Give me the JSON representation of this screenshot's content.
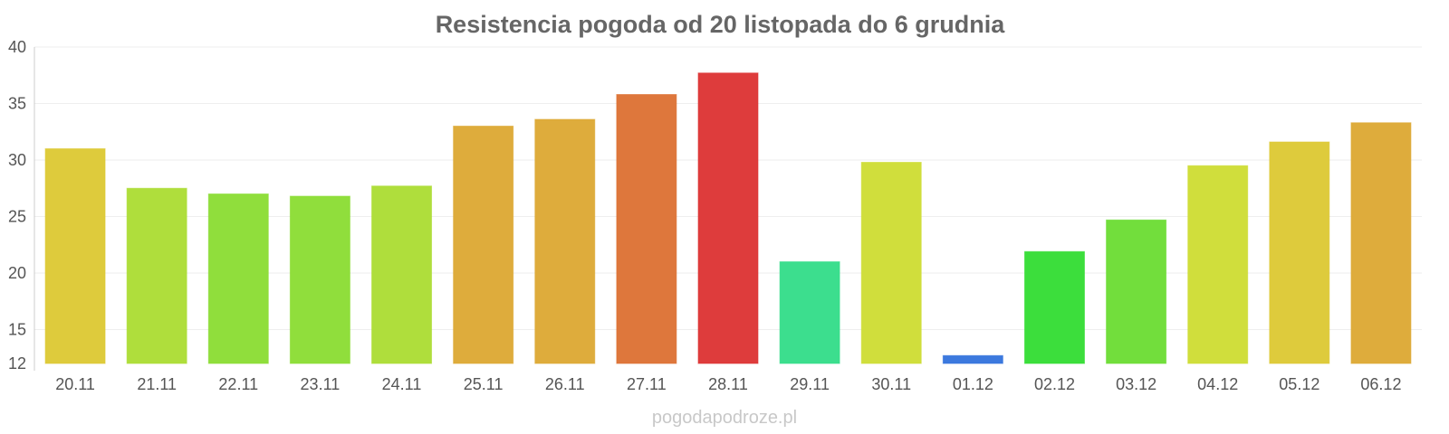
{
  "site": {
    "watermark": "pogodapodroze.pl"
  },
  "chart_data": {
    "type": "bar",
    "title": "Resistencia pogoda od 20 listopada do 6 grudnia",
    "xlabel": "",
    "ylabel": "",
    "ylim": [
      12,
      40
    ],
    "yticks": [
      12,
      15,
      20,
      25,
      30,
      35,
      40
    ],
    "grid": true,
    "categories": [
      "20.11",
      "21.11",
      "22.11",
      "23.11",
      "24.11",
      "25.11",
      "26.11",
      "27.11",
      "28.11",
      "29.11",
      "30.11",
      "01.12",
      "02.12",
      "03.12",
      "04.12",
      "05.12",
      "06.12"
    ],
    "values": [
      31,
      27.5,
      27,
      26.8,
      27.7,
      33,
      33.6,
      35.8,
      37.7,
      21,
      29.8,
      12.7,
      21.9,
      24.7,
      29.5,
      31.6,
      33.3
    ],
    "colors": [
      "#dcc832",
      "#abdc32",
      "#8adc32",
      "#8adc32",
      "#abdc32",
      "#dca832",
      "#dca832",
      "#dc7032",
      "#dc3232",
      "#32dc88",
      "#cddc32",
      "#3272dc",
      "#32dc32",
      "#6adc32",
      "#cddc32",
      "#dcc832",
      "#dca832"
    ]
  }
}
